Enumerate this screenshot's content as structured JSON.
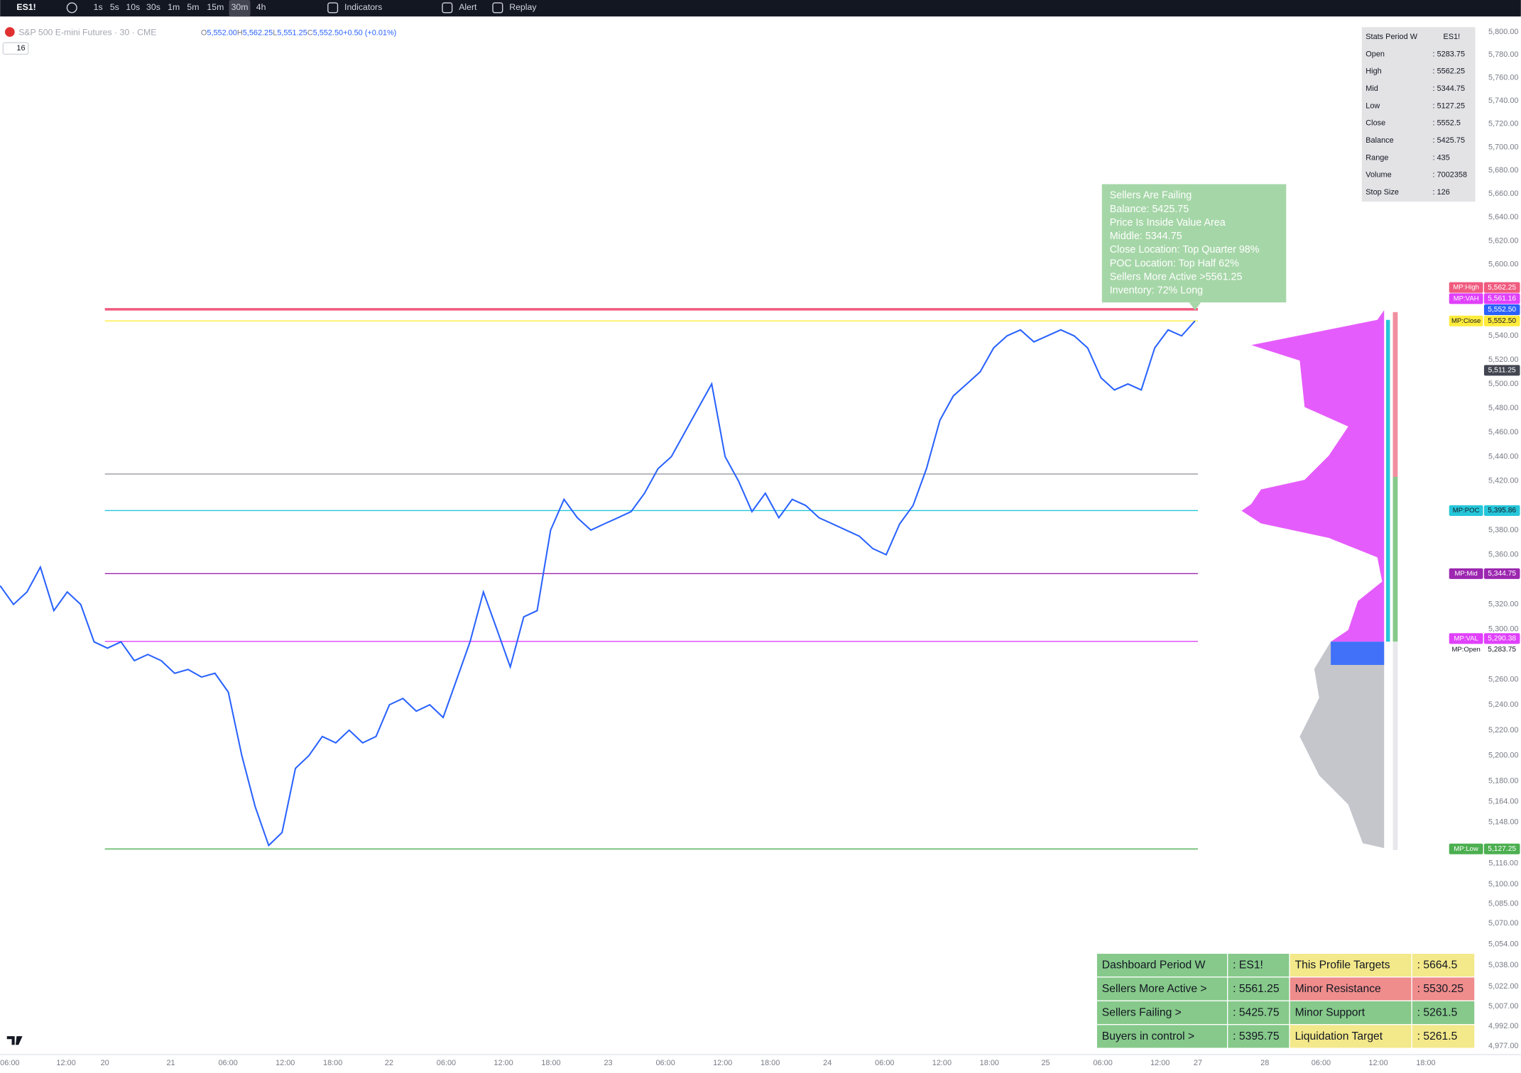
{
  "toolbar": {
    "symbol": "ES1!",
    "intervals": [
      {
        "label": "1s",
        "active": false
      },
      {
        "label": "5s",
        "active": false
      },
      {
        "label": "10s",
        "active": false
      },
      {
        "label": "30s",
        "active": false
      },
      {
        "label": "1m",
        "active": false
      },
      {
        "label": "5m",
        "active": false
      },
      {
        "label": "15m",
        "active": false
      },
      {
        "label": "30m",
        "active": true
      },
      {
        "label": "4h",
        "active": false
      }
    ],
    "buttons": [
      "Indicators",
      "Alert",
      "Replay"
    ]
  },
  "legend": {
    "title": "S&P 500 E-mini Futures · 30 · CME",
    "ohlc": [
      {
        "key": "O",
        "value": "5,552.00"
      },
      {
        "key": "H",
        "value": "5,562.25"
      },
      {
        "key": "L",
        "value": "5,551.25"
      },
      {
        "key": "C",
        "value": "5,552.50"
      }
    ],
    "change": "+0.50 (+0.01%)",
    "collapse": "16"
  },
  "chart_data": {
    "type": "line",
    "color": "#2962ff",
    "log_scale": true,
    "grid": false,
    "values": [
      5335,
      5320,
      5330,
      5350,
      5315,
      5330,
      5320,
      5290,
      5285,
      5290,
      5275,
      5280,
      5275,
      5265,
      5268,
      5262,
      5265,
      5250,
      5200,
      5160,
      5130,
      5140,
      5190,
      5200,
      5215,
      5210,
      5220,
      5210,
      5215,
      5240,
      5245,
      5235,
      5240,
      5230,
      5260,
      5290,
      5330,
      5300,
      5270,
      5310,
      5315,
      5380,
      5405,
      5390,
      5380,
      5385,
      5390,
      5395,
      5410,
      5430,
      5440,
      5460,
      5480,
      5500,
      5440,
      5420,
      5395,
      5410,
      5390,
      5405,
      5400,
      5390,
      5385,
      5380,
      5375,
      5365,
      5360,
      5385,
      5400,
      5430,
      5470,
      5490,
      5500,
      5510,
      5530,
      5540,
      5545,
      5535,
      5540,
      5545,
      5540,
      5530,
      5505,
      5495,
      5500,
      5495,
      5530,
      5545,
      5540,
      5552.5
    ],
    "ylim": [
      4970.6,
      5807.6
    ],
    "yticks": [
      {
        "value": 5800,
        "label": "5,800.00"
      },
      {
        "value": 5780,
        "label": "5,780.00"
      },
      {
        "value": 5760,
        "label": "5,760.00"
      },
      {
        "value": 5740,
        "label": "5,740.00"
      },
      {
        "value": 5720,
        "label": "5,720.00"
      },
      {
        "value": 5700,
        "label": "5,700.00"
      },
      {
        "value": 5680,
        "label": "5,680.00"
      },
      {
        "value": 5660,
        "label": "5,660.00"
      },
      {
        "value": 5640,
        "label": "5,640.00"
      },
      {
        "value": 5620,
        "label": "5,620.00"
      },
      {
        "value": 5600,
        "label": "5,600.00"
      },
      {
        "value": 5540,
        "label": "5,540.00"
      },
      {
        "value": 5520,
        "label": "5,520.00"
      },
      {
        "value": 5500,
        "label": "5,500.00"
      },
      {
        "value": 5480,
        "label": "5,480.00"
      },
      {
        "value": 5460,
        "label": "5,460.00"
      },
      {
        "value": 5440,
        "label": "5,440.00"
      },
      {
        "value": 5420,
        "label": "5,420.00"
      },
      {
        "value": 5380,
        "label": "5,380.00"
      },
      {
        "value": 5360,
        "label": "5,360.00"
      },
      {
        "value": 5320,
        "label": "5,320.00"
      },
      {
        "value": 5300,
        "label": "5,300.00"
      },
      {
        "value": 5260,
        "label": "5,260.00"
      },
      {
        "value": 5240,
        "label": "5,240.00"
      },
      {
        "value": 5220,
        "label": "5,220.00"
      },
      {
        "value": 5200,
        "label": "5,200.00"
      },
      {
        "value": 5180,
        "label": "5,180.00"
      },
      {
        "value": 5164,
        "label": "5,164.00"
      },
      {
        "value": 5148,
        "label": "5,148.00"
      },
      {
        "value": 5116,
        "label": "5,116.00"
      },
      {
        "value": 5100,
        "label": "5,100.00"
      },
      {
        "value": 5085,
        "label": "5,085.00"
      },
      {
        "value": 5070,
        "label": "5,070.00"
      },
      {
        "value": 5054,
        "label": "5,054.00"
      },
      {
        "value": 5038,
        "label": "5,038.00"
      },
      {
        "value": 5022,
        "label": "5,022.00"
      },
      {
        "value": 5007,
        "label": "5,007.00"
      },
      {
        "value": 4992,
        "label": "4,992.00"
      },
      {
        "value": 4977,
        "label": "4,977.00"
      }
    ],
    "time_labels": [
      "06:00",
      "12:00",
      "20",
      "21",
      "06:00",
      "12:00",
      "18:00",
      "22",
      "06:00",
      "12:00",
      "18:00",
      "23",
      "06:00",
      "12:00",
      "18:00",
      "24",
      "06:00",
      "12:00",
      "18:00",
      "25",
      "06:00",
      "12:00",
      "27",
      "28",
      "06:00",
      "12:00",
      "18:00"
    ],
    "levels": [
      {
        "name": "MP:Close",
        "value": 5552.5,
        "label": "5,552.50",
        "color": "#ffeb3b",
        "text_color": "#131722",
        "line": true
      },
      {
        "name": "MP:VAH",
        "value": 5561.16,
        "label": "5,561.16",
        "color": "#e040fb",
        "text_color": "#ffffff",
        "line": false
      },
      {
        "name": "MP:High",
        "value": 5562.25,
        "label": "5,562.25",
        "color": "#f05a7e",
        "text_color": "#ffffff",
        "line": true
      },
      {
        "name": "MP:POC",
        "value": 5395.86,
        "label": "5,395.86",
        "color": "#26c6da",
        "text_color": "#131722",
        "line": true
      },
      {
        "name": "MP:Mid",
        "value": 5344.75,
        "label": "5,344.75",
        "color": "#9c27b0",
        "text_color": "#ffffff",
        "line": true
      },
      {
        "name": "MP:VAL",
        "value": 5290.38,
        "label": "5,290.38",
        "color": "#e040fb",
        "text_color": "#ffffff",
        "line": true
      },
      {
        "name": "MP:Open",
        "value": 5283.75,
        "label": "5,283.75",
        "color": "none",
        "text_color": "#131722",
        "line": false
      },
      {
        "name": "MP:Low",
        "value": 5127.25,
        "label": "5,127.25",
        "color": "#4caf50",
        "text_color": "#ffffff",
        "line": true
      }
    ],
    "balance_line": 5425.75,
    "price_tags": [
      {
        "value": 5552.5,
        "label": "5,552.50",
        "color": "#2962ff"
      },
      {
        "value": 5511.25,
        "label": "5,511.25",
        "color": "#434651"
      }
    ]
  },
  "info_box": {
    "lines": [
      "Sellers Are Failing",
      "Balance: 5425.75",
      "Price Is Inside Value Area",
      "Middle: 5344.75",
      "Close Location: Top Quarter 98%",
      "POC Location: Top Half 62%",
      "Sellers More Active >5561.25",
      "Inventory: 72% Long"
    ]
  },
  "stats": {
    "title": [
      "Stats Period W",
      "ES1!"
    ],
    "rows": [
      [
        "Open",
        ": 5283.75"
      ],
      [
        "High",
        ": 5562.25"
      ],
      [
        "Mid",
        ": 5344.75"
      ],
      [
        "Low",
        ": 5127.25"
      ],
      [
        "Close",
        ": 5552.5"
      ],
      [
        "Balance",
        ": 5425.75"
      ],
      [
        "Range",
        ": 435"
      ],
      [
        "Volume",
        ": 7002358"
      ],
      [
        "Stop Size",
        ": 126"
      ]
    ]
  },
  "dashboard": {
    "rows": [
      [
        {
          "text": "Dashboard Period W",
          "color": "#86c98a"
        },
        {
          "text": ": ES1!",
          "color": "#86c98a"
        },
        {
          "text": "This Profile Targets",
          "color": "#f3e88a"
        },
        {
          "text": ": 5664.5",
          "color": "#f3e88a"
        }
      ],
      [
        {
          "text": "Sellers More Active >",
          "color": "#86c98a"
        },
        {
          "text": ": 5561.25",
          "color": "#86c98a"
        },
        {
          "text": "Minor Resistance",
          "color": "#ef8c8c"
        },
        {
          "text": ": 5530.25",
          "color": "#ef8c8c"
        }
      ],
      [
        {
          "text": "Sellers Failing >",
          "color": "#86c98a"
        },
        {
          "text": ": 5425.75",
          "color": "#86c98a"
        },
        {
          "text": "Minor Support",
          "color": "#86c98a"
        },
        {
          "text": ": 5261.5",
          "color": "#86c98a"
        }
      ],
      [
        {
          "text": "Buyers in control >",
          "color": "#86c98a"
        },
        {
          "text": ": 5395.75",
          "color": "#86c98a"
        },
        {
          "text": "Liquidation Target",
          "color": "#f3e88a"
        },
        {
          "text": ": 5261.5",
          "color": "#f3e88a"
        }
      ]
    ]
  }
}
